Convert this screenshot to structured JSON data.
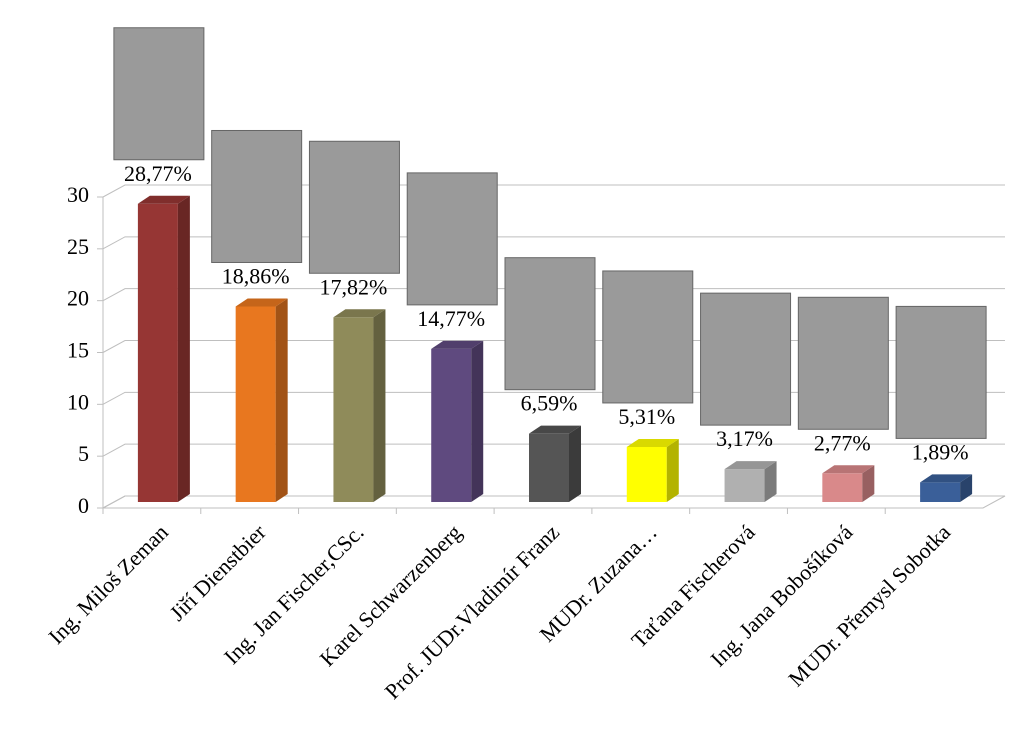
{
  "chart_data": {
    "type": "bar3d",
    "categories": [
      "Ing. Miloš Zeman",
      "Jiří Dienstbier",
      "Ing. Jan Fischer,CSc.",
      "Karel Schwarzenberg",
      "Prof. JUDr.Vladimír Franz",
      "MUDr. Zuzana…",
      "Taťana Fischerová",
      "Ing. Jana Bobošíková",
      "MUDr. Přemysl Sobotka"
    ],
    "values": [
      28.77,
      18.86,
      17.82,
      14.77,
      6.59,
      5.31,
      3.17,
      2.77,
      1.89
    ],
    "value_labels": [
      "28,77%",
      "18,86%",
      "17,82%",
      "14,77%",
      "6,59%",
      "5,31%",
      "3,17%",
      "2,77%",
      "1,89%"
    ],
    "colors": [
      "#963634",
      "#e8771f",
      "#8f8b5a",
      "#5f4a7f",
      "#555555",
      "#ffff00",
      "#b0b0b0",
      "#d9898a",
      "#3a5f99"
    ],
    "ylim": [
      0,
      30
    ],
    "yticks": [
      0,
      5,
      10,
      15,
      20,
      25,
      30
    ],
    "grid": true
  }
}
